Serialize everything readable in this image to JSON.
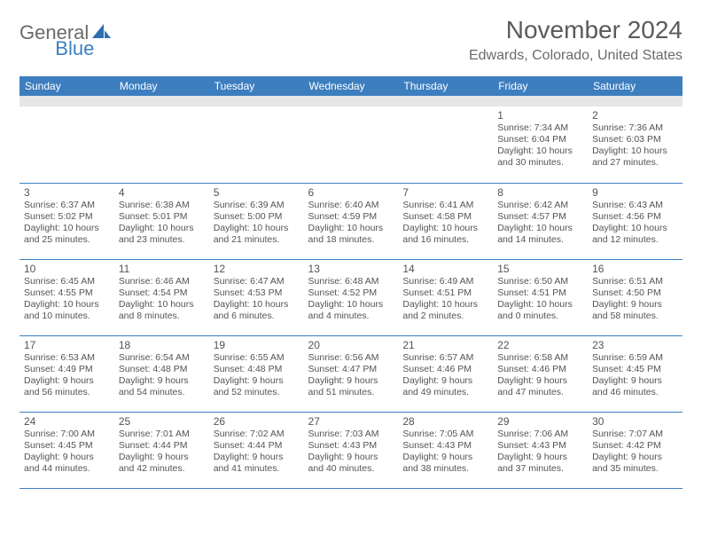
{
  "logo": {
    "text1": "General",
    "text2": "Blue"
  },
  "title": "November 2024",
  "location": "Edwards, Colorado, United States",
  "colors": {
    "header_bg": "#3d7ebf",
    "header_fg": "#ffffff",
    "spacer_bg": "#e6e6e6",
    "rule": "#3d7ebf",
    "text": "#545454"
  },
  "day_headers": [
    "Sunday",
    "Monday",
    "Tuesday",
    "Wednesday",
    "Thursday",
    "Friday",
    "Saturday"
  ],
  "weeks": [
    [
      null,
      null,
      null,
      null,
      null,
      {
        "n": "1",
        "sr": "7:34 AM",
        "ss": "6:04 PM",
        "dl": "10 hours and 30 minutes."
      },
      {
        "n": "2",
        "sr": "7:36 AM",
        "ss": "6:03 PM",
        "dl": "10 hours and 27 minutes."
      }
    ],
    [
      {
        "n": "3",
        "sr": "6:37 AM",
        "ss": "5:02 PM",
        "dl": "10 hours and 25 minutes."
      },
      {
        "n": "4",
        "sr": "6:38 AM",
        "ss": "5:01 PM",
        "dl": "10 hours and 23 minutes."
      },
      {
        "n": "5",
        "sr": "6:39 AM",
        "ss": "5:00 PM",
        "dl": "10 hours and 21 minutes."
      },
      {
        "n": "6",
        "sr": "6:40 AM",
        "ss": "4:59 PM",
        "dl": "10 hours and 18 minutes."
      },
      {
        "n": "7",
        "sr": "6:41 AM",
        "ss": "4:58 PM",
        "dl": "10 hours and 16 minutes."
      },
      {
        "n": "8",
        "sr": "6:42 AM",
        "ss": "4:57 PM",
        "dl": "10 hours and 14 minutes."
      },
      {
        "n": "9",
        "sr": "6:43 AM",
        "ss": "4:56 PM",
        "dl": "10 hours and 12 minutes."
      }
    ],
    [
      {
        "n": "10",
        "sr": "6:45 AM",
        "ss": "4:55 PM",
        "dl": "10 hours and 10 minutes."
      },
      {
        "n": "11",
        "sr": "6:46 AM",
        "ss": "4:54 PM",
        "dl": "10 hours and 8 minutes."
      },
      {
        "n": "12",
        "sr": "6:47 AM",
        "ss": "4:53 PM",
        "dl": "10 hours and 6 minutes."
      },
      {
        "n": "13",
        "sr": "6:48 AM",
        "ss": "4:52 PM",
        "dl": "10 hours and 4 minutes."
      },
      {
        "n": "14",
        "sr": "6:49 AM",
        "ss": "4:51 PM",
        "dl": "10 hours and 2 minutes."
      },
      {
        "n": "15",
        "sr": "6:50 AM",
        "ss": "4:51 PM",
        "dl": "10 hours and 0 minutes."
      },
      {
        "n": "16",
        "sr": "6:51 AM",
        "ss": "4:50 PM",
        "dl": "9 hours and 58 minutes."
      }
    ],
    [
      {
        "n": "17",
        "sr": "6:53 AM",
        "ss": "4:49 PM",
        "dl": "9 hours and 56 minutes."
      },
      {
        "n": "18",
        "sr": "6:54 AM",
        "ss": "4:48 PM",
        "dl": "9 hours and 54 minutes."
      },
      {
        "n": "19",
        "sr": "6:55 AM",
        "ss": "4:48 PM",
        "dl": "9 hours and 52 minutes."
      },
      {
        "n": "20",
        "sr": "6:56 AM",
        "ss": "4:47 PM",
        "dl": "9 hours and 51 minutes."
      },
      {
        "n": "21",
        "sr": "6:57 AM",
        "ss": "4:46 PM",
        "dl": "9 hours and 49 minutes."
      },
      {
        "n": "22",
        "sr": "6:58 AM",
        "ss": "4:46 PM",
        "dl": "9 hours and 47 minutes."
      },
      {
        "n": "23",
        "sr": "6:59 AM",
        "ss": "4:45 PM",
        "dl": "9 hours and 46 minutes."
      }
    ],
    [
      {
        "n": "24",
        "sr": "7:00 AM",
        "ss": "4:45 PM",
        "dl": "9 hours and 44 minutes."
      },
      {
        "n": "25",
        "sr": "7:01 AM",
        "ss": "4:44 PM",
        "dl": "9 hours and 42 minutes."
      },
      {
        "n": "26",
        "sr": "7:02 AM",
        "ss": "4:44 PM",
        "dl": "9 hours and 41 minutes."
      },
      {
        "n": "27",
        "sr": "7:03 AM",
        "ss": "4:43 PM",
        "dl": "9 hours and 40 minutes."
      },
      {
        "n": "28",
        "sr": "7:05 AM",
        "ss": "4:43 PM",
        "dl": "9 hours and 38 minutes."
      },
      {
        "n": "29",
        "sr": "7:06 AM",
        "ss": "4:43 PM",
        "dl": "9 hours and 37 minutes."
      },
      {
        "n": "30",
        "sr": "7:07 AM",
        "ss": "4:42 PM",
        "dl": "9 hours and 35 minutes."
      }
    ]
  ],
  "labels": {
    "sunrise": "Sunrise: ",
    "sunset": "Sunset: ",
    "daylight": "Daylight: "
  }
}
